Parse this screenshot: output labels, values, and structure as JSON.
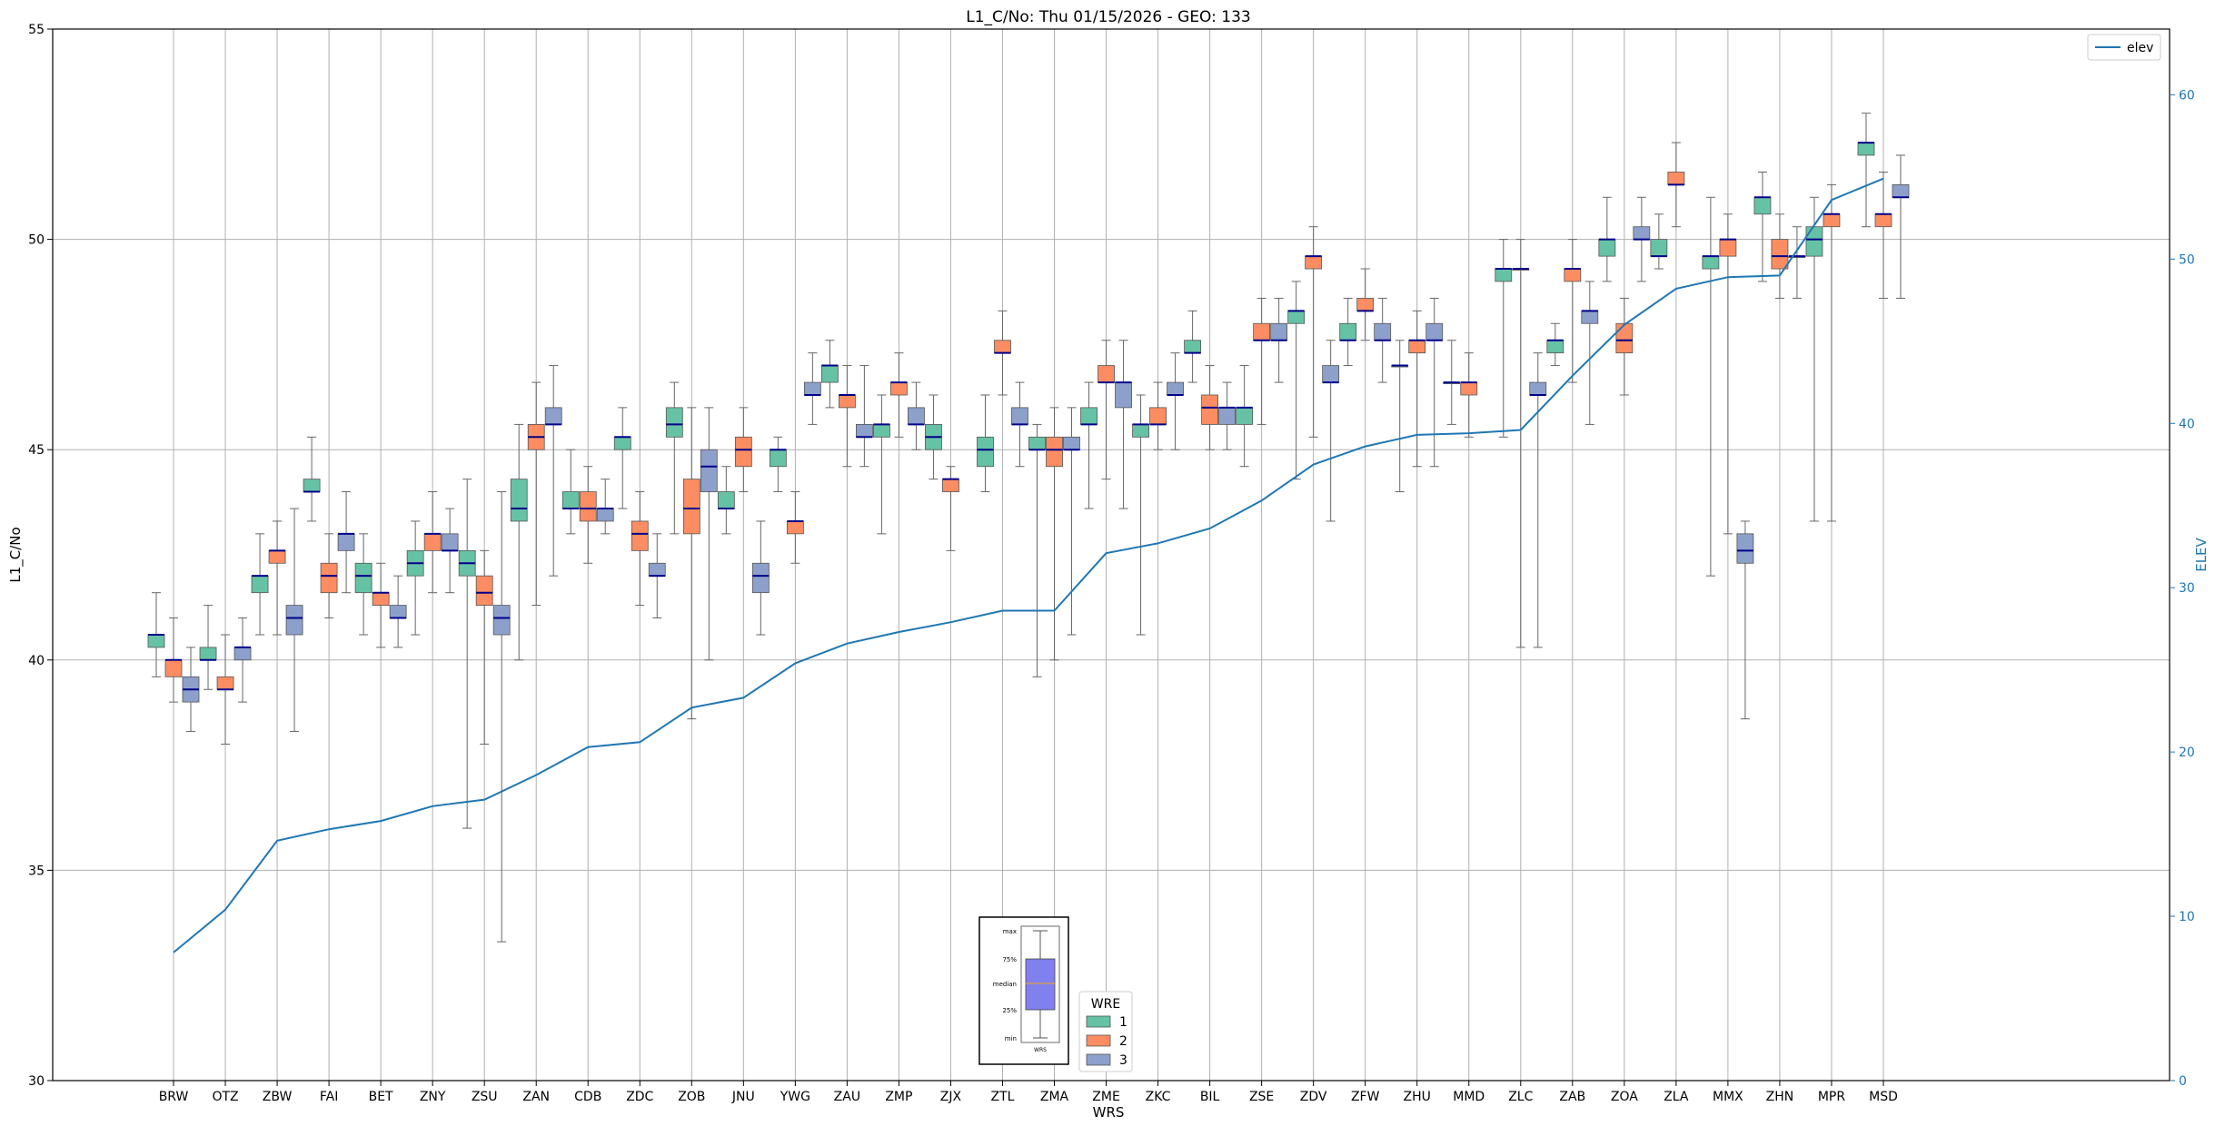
{
  "chart_data": {
    "type": "box",
    "title": "L1_C/No: Thu 01/15/2026 - GEO: 133",
    "xlabel": "WRS",
    "ylabel": "L1_C/No",
    "y2label": "ELEV",
    "ylim": [
      30,
      55
    ],
    "y2lim": [
      0,
      64
    ],
    "yticks": [
      30,
      35,
      40,
      45,
      50,
      55
    ],
    "y2ticks": [
      0,
      10,
      20,
      30,
      40,
      50,
      60
    ],
    "grid": true,
    "categories": [
      "BRW",
      "OTZ",
      "ZBW",
      "FAI",
      "BET",
      "ZNY",
      "ZSU",
      "ZAN",
      "CDB",
      "ZDC",
      "ZOB",
      "JNU",
      "YWG",
      "ZAU",
      "ZMP",
      "ZJX",
      "ZTL",
      "ZMA",
      "ZME",
      "ZKC",
      "BIL",
      "ZSE",
      "ZDV",
      "ZFW",
      "ZHU",
      "MMD",
      "ZLC",
      "ZAB",
      "ZOA",
      "ZLA",
      "MMX",
      "ZHN",
      "MPR",
      "MSD"
    ],
    "series": [
      {
        "name": "1",
        "color": "#66c2a5",
        "boxes": [
          [
            39.6,
            40.3,
            40.6,
            40.6,
            41.6
          ],
          [
            39.3,
            40.0,
            40.0,
            40.3,
            41.3
          ],
          [
            40.6,
            41.6,
            42.0,
            42.0,
            43.0
          ],
          [
            43.3,
            44.0,
            44.0,
            44.3,
            45.3
          ],
          [
            40.6,
            41.6,
            42.0,
            42.3,
            43.0
          ],
          [
            40.6,
            42.0,
            42.3,
            42.6,
            43.3
          ],
          [
            36.0,
            42.0,
            42.3,
            42.6,
            44.3
          ],
          [
            40.0,
            43.3,
            43.6,
            44.3,
            45.6
          ],
          [
            43.0,
            43.6,
            43.6,
            44.0,
            45.0
          ],
          [
            43.6,
            45.0,
            45.3,
            45.3,
            46.0
          ],
          [
            43.0,
            45.3,
            45.6,
            46.0,
            46.6
          ],
          [
            43.0,
            43.6,
            43.6,
            44.0,
            44.6
          ],
          [
            44.0,
            44.6,
            45.0,
            45.0,
            45.3
          ],
          [
            46.0,
            46.6,
            47.0,
            47.0,
            47.6
          ],
          [
            43.0,
            45.3,
            45.6,
            45.6,
            46.3
          ],
          [
            44.3,
            45.0,
            45.3,
            45.6,
            46.3
          ],
          [
            44.0,
            44.6,
            45.0,
            45.3,
            46.3
          ],
          [
            39.6,
            45.0,
            45.0,
            45.3,
            45.6
          ],
          [
            43.6,
            45.6,
            45.6,
            46.0,
            46.6
          ],
          [
            40.6,
            45.3,
            45.6,
            45.6,
            46.3
          ],
          [
            46.6,
            47.3,
            47.3,
            47.6,
            48.3
          ],
          [
            44.6,
            45.6,
            46.0,
            46.0,
            47.0
          ],
          [
            44.3,
            48.0,
            48.3,
            48.3,
            49.0
          ],
          [
            47.0,
            47.6,
            47.6,
            48.0,
            48.6
          ],
          [
            44.0,
            47.0,
            47.0,
            47.0,
            47.6
          ],
          [
            45.6,
            46.6,
            46.6,
            46.6,
            47.6
          ],
          [
            45.3,
            49.0,
            49.3,
            49.3,
            50.0
          ],
          [
            47.0,
            47.3,
            47.6,
            47.6,
            48.0
          ],
          [
            49.0,
            49.6,
            50.0,
            50.0,
            51.0
          ],
          [
            49.3,
            49.6,
            49.6,
            50.0,
            50.6
          ],
          [
            42.0,
            49.3,
            49.6,
            49.6,
            51.0
          ],
          [
            49.0,
            50.6,
            51.0,
            51.0,
            51.6
          ],
          [
            43.3,
            49.6,
            50.0,
            50.3,
            51.0
          ],
          [
            50.3,
            52.0,
            52.3,
            52.3,
            53.0
          ]
        ]
      },
      {
        "name": "2",
        "color": "#fc8d62",
        "boxes": [
          [
            39.0,
            39.6,
            40.0,
            40.0,
            41.0
          ],
          [
            38.0,
            39.3,
            39.3,
            39.6,
            40.6
          ],
          [
            40.6,
            42.3,
            42.6,
            42.6,
            43.3
          ],
          [
            41.0,
            41.6,
            42.0,
            42.3,
            43.0
          ],
          [
            40.3,
            41.3,
            41.6,
            41.6,
            42.3
          ],
          [
            41.6,
            42.6,
            43.0,
            43.0,
            44.0
          ],
          [
            38.0,
            41.3,
            41.6,
            42.0,
            42.6
          ],
          [
            41.3,
            45.0,
            45.3,
            45.6,
            46.6
          ],
          [
            42.3,
            43.3,
            43.6,
            44.0,
            44.6
          ],
          [
            41.3,
            42.6,
            43.0,
            43.3,
            44.0
          ],
          [
            38.6,
            43.0,
            43.6,
            44.3,
            46.0
          ],
          [
            44.0,
            44.6,
            45.0,
            45.3,
            46.0
          ],
          [
            42.3,
            43.0,
            43.3,
            43.3,
            44.0
          ],
          [
            44.6,
            46.0,
            46.3,
            46.3,
            47.0
          ],
          [
            45.3,
            46.3,
            46.6,
            46.6,
            47.3
          ],
          [
            42.6,
            44.0,
            44.3,
            44.3,
            44.6
          ],
          [
            46.3,
            47.3,
            47.3,
            47.6,
            48.3
          ],
          [
            40.0,
            44.6,
            45.0,
            45.3,
            46.0
          ],
          [
            44.3,
            46.6,
            46.6,
            47.0,
            47.6
          ],
          [
            45.0,
            45.6,
            45.6,
            46.0,
            46.6
          ],
          [
            45.0,
            45.6,
            46.0,
            46.3,
            47.0
          ],
          [
            45.6,
            47.6,
            47.6,
            48.0,
            48.6
          ],
          [
            45.3,
            49.3,
            49.6,
            49.6,
            50.3
          ],
          [
            47.6,
            48.3,
            48.3,
            48.6,
            49.3
          ],
          [
            44.6,
            47.3,
            47.6,
            47.6,
            48.3
          ],
          [
            45.3,
            46.3,
            46.6,
            46.6,
            47.3
          ],
          [
            40.3,
            49.3,
            49.3,
            49.3,
            50.0
          ],
          [
            46.6,
            49.0,
            49.3,
            49.3,
            50.0
          ],
          [
            46.3,
            47.3,
            47.6,
            48.0,
            48.6
          ],
          [
            50.3,
            51.3,
            51.3,
            51.6,
            52.3
          ],
          [
            43.0,
            49.6,
            50.0,
            50.0,
            50.6
          ],
          [
            48.6,
            49.3,
            49.6,
            50.0,
            50.6
          ],
          [
            43.3,
            50.3,
            50.6,
            50.6,
            51.3
          ],
          [
            48.6,
            50.3,
            50.6,
            50.6,
            51.6
          ]
        ]
      },
      {
        "name": "3",
        "color": "#8da0cb",
        "boxes": [
          [
            38.3,
            39.0,
            39.3,
            39.6,
            40.3
          ],
          [
            39.0,
            40.0,
            40.3,
            40.3,
            41.0
          ],
          [
            38.3,
            40.6,
            41.0,
            41.3,
            43.6
          ],
          [
            41.6,
            42.6,
            43.0,
            43.0,
            44.0
          ],
          [
            40.3,
            41.0,
            41.0,
            41.3,
            42.0
          ],
          [
            41.6,
            42.6,
            42.6,
            43.0,
            43.6
          ],
          [
            33.3,
            40.6,
            41.0,
            41.3,
            44.0
          ],
          [
            42.0,
            45.6,
            45.6,
            46.0,
            47.0
          ],
          [
            43.0,
            43.3,
            43.6,
            43.6,
            44.3
          ],
          [
            41.0,
            42.0,
            42.0,
            42.3,
            43.0
          ],
          [
            40.0,
            44.0,
            44.6,
            45.0,
            46.0
          ],
          [
            40.6,
            41.6,
            42.0,
            42.3,
            43.3
          ],
          [
            45.6,
            46.3,
            46.3,
            46.6,
            47.3
          ],
          [
            44.6,
            45.3,
            45.3,
            45.6,
            47.0
          ],
          [
            45.0,
            45.6,
            45.6,
            46.0,
            46.6
          ],
          [
            null,
            null,
            null,
            null,
            null
          ],
          [
            44.6,
            45.6,
            45.6,
            46.0,
            46.6
          ],
          [
            40.6,
            45.0,
            45.0,
            45.3,
            46.0
          ],
          [
            43.6,
            46.0,
            46.6,
            46.6,
            47.6
          ],
          [
            45.0,
            46.3,
            46.3,
            46.6,
            47.3
          ],
          [
            45.0,
            45.6,
            46.0,
            46.0,
            46.6
          ],
          [
            46.6,
            47.6,
            47.6,
            48.0,
            48.6
          ],
          [
            43.3,
            46.6,
            46.6,
            47.0,
            47.6
          ],
          [
            46.6,
            47.6,
            47.6,
            48.0,
            48.6
          ],
          [
            44.6,
            47.6,
            47.6,
            48.0,
            48.6
          ],
          [
            null,
            null,
            null,
            null,
            null
          ],
          [
            40.3,
            46.3,
            46.3,
            46.6,
            47.3
          ],
          [
            45.6,
            48.0,
            48.3,
            48.3,
            49.0
          ],
          [
            49.0,
            50.0,
            50.0,
            50.3,
            51.0
          ],
          [
            null,
            null,
            null,
            null,
            null
          ],
          [
            38.6,
            42.3,
            42.6,
            43.0,
            43.3
          ],
          [
            48.6,
            49.6,
            49.6,
            49.6,
            50.3
          ],
          [
            null,
            null,
            null,
            null,
            null
          ],
          [
            48.6,
            51.0,
            51.0,
            51.3,
            52.0
          ]
        ]
      }
    ],
    "elevation": {
      "name": "elev",
      "color": "#1f77b4",
      "values": [
        7.8,
        10.4,
        14.6,
        15.3,
        15.8,
        16.7,
        17.1,
        18.6,
        20.3,
        20.6,
        22.7,
        23.3,
        25.4,
        26.6,
        27.3,
        27.9,
        28.6,
        28.6,
        32.1,
        32.7,
        33.6,
        35.3,
        37.5,
        38.6,
        39.3,
        39.4,
        39.6,
        42.9,
        46.0,
        48.2,
        48.9,
        49.0,
        53.6,
        54.9
      ]
    },
    "legend": {
      "title": "WRE",
      "entries": [
        "1",
        "2",
        "3"
      ],
      "placement": "lower-center"
    },
    "legend2": {
      "entries": [
        "elev"
      ],
      "placement": "top-right"
    },
    "inset_key": {
      "labels": [
        "max",
        "75%",
        "median",
        "25%",
        "min"
      ],
      "caption": "WRS"
    }
  }
}
